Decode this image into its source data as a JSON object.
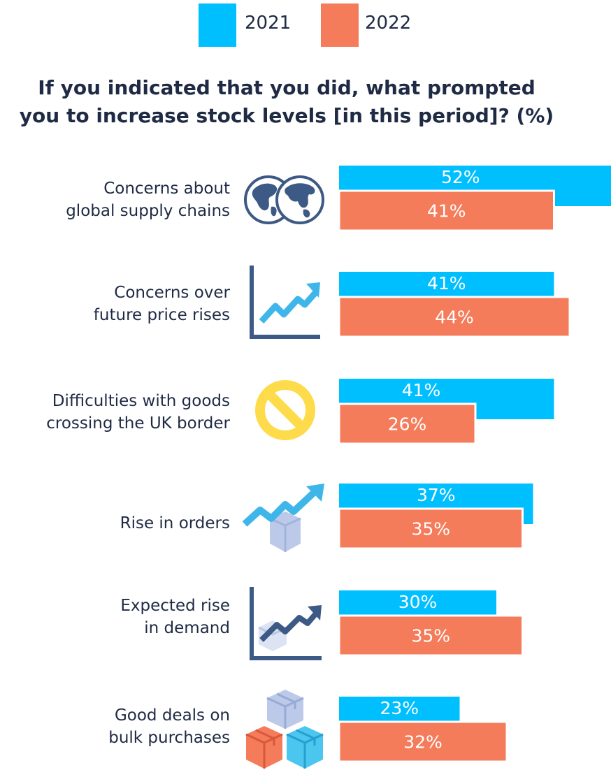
{
  "legend": [
    {
      "label": "2021",
      "color": "#00bfff"
    },
    {
      "label": "2022",
      "color": "#f47c5b"
    }
  ],
  "title_lines": [
    "If you indicated that you did, what prompted",
    "you to increase stock levels [in this period]? (%)"
  ],
  "categories": [
    {
      "lines": [
        "Concerns about",
        "global supply chains"
      ],
      "icon": "globe-icon"
    },
    {
      "lines": [
        "Concerns over",
        "future price rises"
      ],
      "icon": "rising-chart-icon"
    },
    {
      "lines": [
        "Difficulties with goods",
        "crossing the UK border"
      ],
      "icon": "prohibited-sign-icon"
    },
    {
      "lines": [
        "Rise in orders"
      ],
      "icon": "box-with-rising-arrow-icon"
    },
    {
      "lines": [
        "Expected rise",
        "in demand"
      ],
      "icon": "chart-with-box-icon"
    },
    {
      "lines": [
        "Good deals on",
        "bulk purchases"
      ],
      "icon": "stacked-boxes-icon"
    }
  ],
  "chart_data": {
    "type": "bar",
    "orientation": "horizontal",
    "title": "If you indicated that you did, what prompted you to increase stock levels [in this period]? (%)",
    "categories": [
      "Concerns about global supply chains",
      "Concerns over future price rises",
      "Difficulties with goods crossing the UK border",
      "Rise in orders",
      "Expected rise in demand",
      "Good deals on bulk purchases"
    ],
    "series": [
      {
        "name": "2021",
        "values": [
          52,
          41,
          41,
          37,
          30,
          23
        ],
        "labels": [
          "52%",
          "41%",
          "41%",
          "37%",
          "30%",
          "23%"
        ],
        "color": "#00bfff"
      },
      {
        "name": "2022",
        "values": [
          41,
          44,
          26,
          35,
          35,
          32
        ],
        "labels": [
          "41%",
          "44%",
          "26%",
          "35%",
          "35%",
          "32%"
        ],
        "color": "#f47c5b"
      }
    ],
    "value_unit": "%",
    "legend_position": "top-center",
    "grid": false
  }
}
